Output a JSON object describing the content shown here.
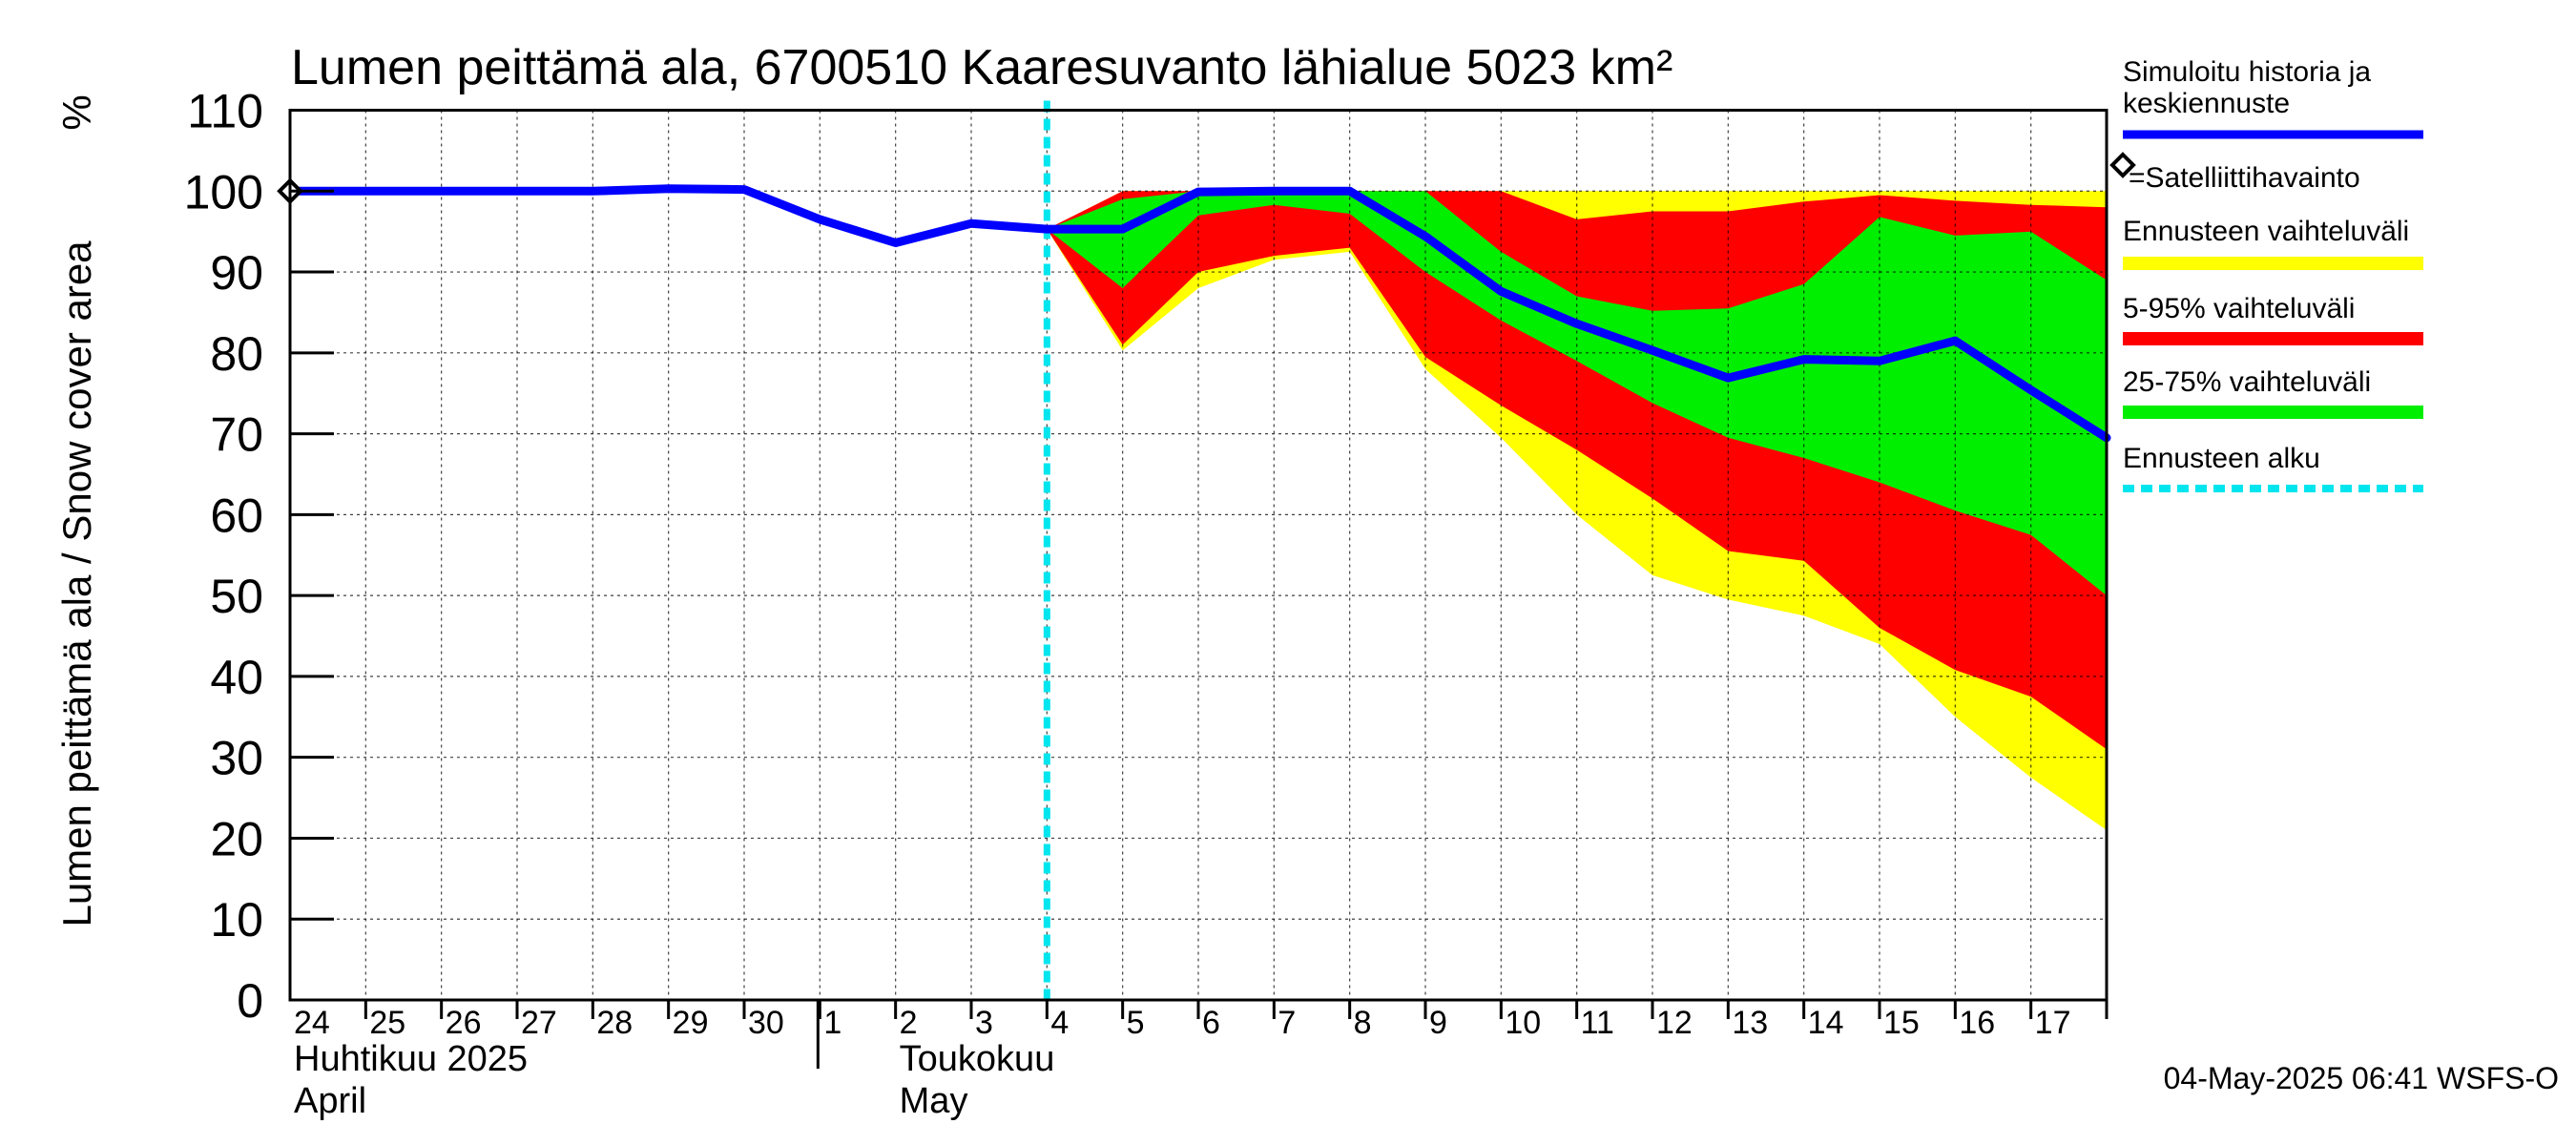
{
  "chart_data": {
    "type": "area",
    "title": "Lumen peittämä ala, 6700510 Kaaresuvanto lähialue 5023 km²",
    "ylabel": "Lumen peittämä ala / Snow cover area",
    "yunit": "%",
    "ylim": [
      0,
      110
    ],
    "yticks": [
      0,
      10,
      20,
      30,
      40,
      50,
      60,
      70,
      80,
      90,
      100,
      110
    ],
    "x_dates": [
      "2025-04-24",
      "2025-04-25",
      "2025-04-26",
      "2025-04-27",
      "2025-04-28",
      "2025-04-29",
      "2025-04-30",
      "2025-05-01",
      "2025-05-02",
      "2025-05-03",
      "2025-05-04",
      "2025-05-05",
      "2025-05-06",
      "2025-05-07",
      "2025-05-08",
      "2025-05-09",
      "2025-05-10",
      "2025-05-11",
      "2025-05-12",
      "2025-05-13",
      "2025-05-14",
      "2025-05-15",
      "2025-05-16",
      "2025-05-17",
      "2025-05-18"
    ],
    "xtick_labels": [
      "24",
      "25",
      "26",
      "27",
      "28",
      "29",
      "30",
      "1",
      "2",
      "3",
      "4",
      "5",
      "6",
      "7",
      "8",
      "9",
      "10",
      "11",
      "12",
      "13",
      "14",
      "15",
      "16",
      "17"
    ],
    "month_labels": [
      {
        "line1": "Huhtikuu  2025",
        "line2": "April"
      },
      {
        "line1": "Toukokuu",
        "line2": "May"
      }
    ],
    "grid": true,
    "legend_position": "right",
    "forecast_start": "2025-05-04",
    "satellite_observation": {
      "x": "2025-04-24",
      "y": 100
    },
    "series": [
      {
        "name": "Simuloitu historia ja keskiennuste",
        "color": "#0000ff",
        "x": [
          "2025-04-24",
          "2025-04-25",
          "2025-04-26",
          "2025-04-27",
          "2025-04-28",
          "2025-04-29",
          "2025-04-30",
          "2025-05-01",
          "2025-05-02",
          "2025-05-03",
          "2025-05-04",
          "2025-05-05",
          "2025-05-06",
          "2025-05-07",
          "2025-05-08",
          "2025-05-09",
          "2025-05-10",
          "2025-05-11",
          "2025-05-12",
          "2025-05-13",
          "2025-05-14",
          "2025-05-15",
          "2025-05-16",
          "2025-05-17",
          "2025-05-18"
        ],
        "y": [
          100,
          100,
          100,
          100,
          100,
          100.3,
          100.2,
          96.5,
          93.6,
          96,
          95.3,
          95.3,
          99.9,
          100,
          100,
          94.4,
          87.6,
          83.6,
          80.3,
          76.9,
          79.2,
          79,
          81.5,
          75.4,
          69.5
        ]
      }
    ],
    "bands": [
      {
        "name": "Ennusteen vaihteluväli",
        "color": "#ffff00",
        "x": [
          "2025-05-04",
          "2025-05-05",
          "2025-05-06",
          "2025-05-07",
          "2025-05-08",
          "2025-05-09",
          "2025-05-10",
          "2025-05-11",
          "2025-05-12",
          "2025-05-13",
          "2025-05-14",
          "2025-05-15",
          "2025-05-16",
          "2025-05-17",
          "2025-05-18"
        ],
        "low": [
          95.3,
          80.3,
          88,
          91.5,
          92.5,
          78,
          69.5,
          60,
          52.5,
          49.5,
          47.5,
          44,
          35,
          27.5,
          21
        ],
        "high": [
          95.3,
          100,
          100,
          100,
          100,
          100,
          100,
          100,
          100,
          100,
          100,
          100,
          100,
          100,
          100
        ]
      },
      {
        "name": "5-95% vaihteluväli",
        "color": "#ff0000",
        "x": [
          "2025-05-04",
          "2025-05-05",
          "2025-05-06",
          "2025-05-07",
          "2025-05-08",
          "2025-05-09",
          "2025-05-10",
          "2025-05-11",
          "2025-05-12",
          "2025-05-13",
          "2025-05-14",
          "2025-05-15",
          "2025-05-16",
          "2025-05-17",
          "2025-05-18"
        ],
        "low": [
          95.3,
          81,
          90,
          92,
          93,
          79.5,
          73.5,
          68,
          62,
          55.5,
          54.3,
          46,
          40.8,
          37.5,
          31
        ],
        "high": [
          95.3,
          100,
          100,
          100,
          100,
          100,
          100,
          96.5,
          97.5,
          97.5,
          98.7,
          99.5,
          98.8,
          98.3,
          98
        ]
      },
      {
        "name": "25-75% vaihteluväli",
        "color": "#00ee00",
        "x": [
          "2025-05-04",
          "2025-05-05",
          "2025-05-06",
          "2025-05-07",
          "2025-05-08",
          "2025-05-09",
          "2025-05-10",
          "2025-05-11",
          "2025-05-12",
          "2025-05-13",
          "2025-05-14",
          "2025-05-15",
          "2025-05-16",
          "2025-05-17",
          "2025-05-18"
        ],
        "low": [
          95.3,
          88,
          97,
          98.3,
          97.2,
          90,
          84,
          79,
          73.8,
          69.5,
          67,
          64,
          60.5,
          57.5,
          50
        ],
        "high": [
          95.3,
          99,
          100,
          100,
          100,
          100,
          92.5,
          87,
          85.2,
          85.5,
          88.5,
          96.8,
          94.5,
          95,
          89
        ]
      }
    ],
    "legend": [
      {
        "label": "Simuloitu historia ja keskiennuste",
        "color": "#0000ff",
        "kind": "line"
      },
      {
        "label": "=Satelliittihavainto",
        "color": "#000000",
        "kind": "diamond"
      },
      {
        "label": "Ennusteen vaihteluväli",
        "color": "#ffff00",
        "kind": "band"
      },
      {
        "label": "5-95% vaihteluväli",
        "color": "#ff0000",
        "kind": "band"
      },
      {
        "label": "25-75% vaihteluväli",
        "color": "#00ee00",
        "kind": "band"
      },
      {
        "label": "Ennusteen alku",
        "color": "#00e5ee",
        "kind": "dashed"
      }
    ],
    "timestamp": "04-May-2025 06:41 WSFS-O"
  }
}
